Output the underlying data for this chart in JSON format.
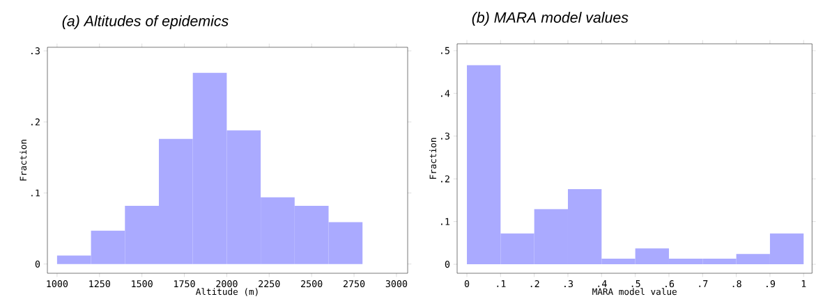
{
  "chart_data": [
    {
      "type": "histogram",
      "title": "(a) Altitudes of epidemics",
      "xlabel": "Altitude (m)",
      "ylabel": "Fraction",
      "color": "#aaaaff",
      "bins": [
        1000,
        1200,
        1400,
        1600,
        1800,
        2000,
        2200,
        2400,
        2600,
        2800,
        3000
      ],
      "values": [
        0.012,
        0.047,
        0.082,
        0.176,
        0.269,
        0.188,
        0.094,
        0.082,
        0.059,
        0
      ],
      "xlim": [
        943,
        3066
      ],
      "ylim": [
        -0.013,
        0.305
      ],
      "xticks": [
        1000,
        1250,
        1500,
        1750,
        2000,
        2250,
        2500,
        2750,
        3000
      ],
      "yticks": [
        0,
        {
          "value": 0.1,
          "label": ".1"
        },
        {
          "value": 0.2,
          "label": ".2"
        },
        {
          "value": 0.3,
          "label": ".3"
        }
      ]
    },
    {
      "type": "histogram",
      "title": "(b) MARA model values",
      "xlabel": "MARA model value",
      "ylabel": "Fraction",
      "color": "#aaaaff",
      "bins": [
        0,
        0.1,
        0.2,
        0.3,
        0.4,
        0.5,
        0.6,
        0.7,
        0.8,
        0.9,
        1
      ],
      "values": [
        0.466,
        0.072,
        0.129,
        0.176,
        0.013,
        0.037,
        0.013,
        0.013,
        0.024,
        0.072
      ],
      "xlim": [
        -0.029,
        1.025
      ],
      "ylim": [
        -0.021,
        0.516
      ],
      "xticks": [
        0,
        {
          "value": 0.1,
          "label": ".1"
        },
        {
          "value": 0.2,
          "label": ".2"
        },
        {
          "value": 0.3,
          "label": ".3"
        },
        {
          "value": 0.4,
          "label": ".4"
        },
        {
          "value": 0.5,
          "label": ".5"
        },
        {
          "value": 0.6,
          "label": ".6"
        },
        {
          "value": 0.7,
          "label": ".7"
        },
        {
          "value": 0.8,
          "label": ".8"
        },
        {
          "value": 0.9,
          "label": ".9"
        },
        1
      ],
      "yticks": [
        0,
        {
          "value": 0.1,
          "label": ".1"
        },
        {
          "value": 0.2,
          "label": ".2"
        },
        {
          "value": 0.3,
          "label": ".3"
        },
        {
          "value": 0.4,
          "label": ".4"
        },
        {
          "value": 0.5,
          "label": ".5"
        }
      ]
    }
  ]
}
